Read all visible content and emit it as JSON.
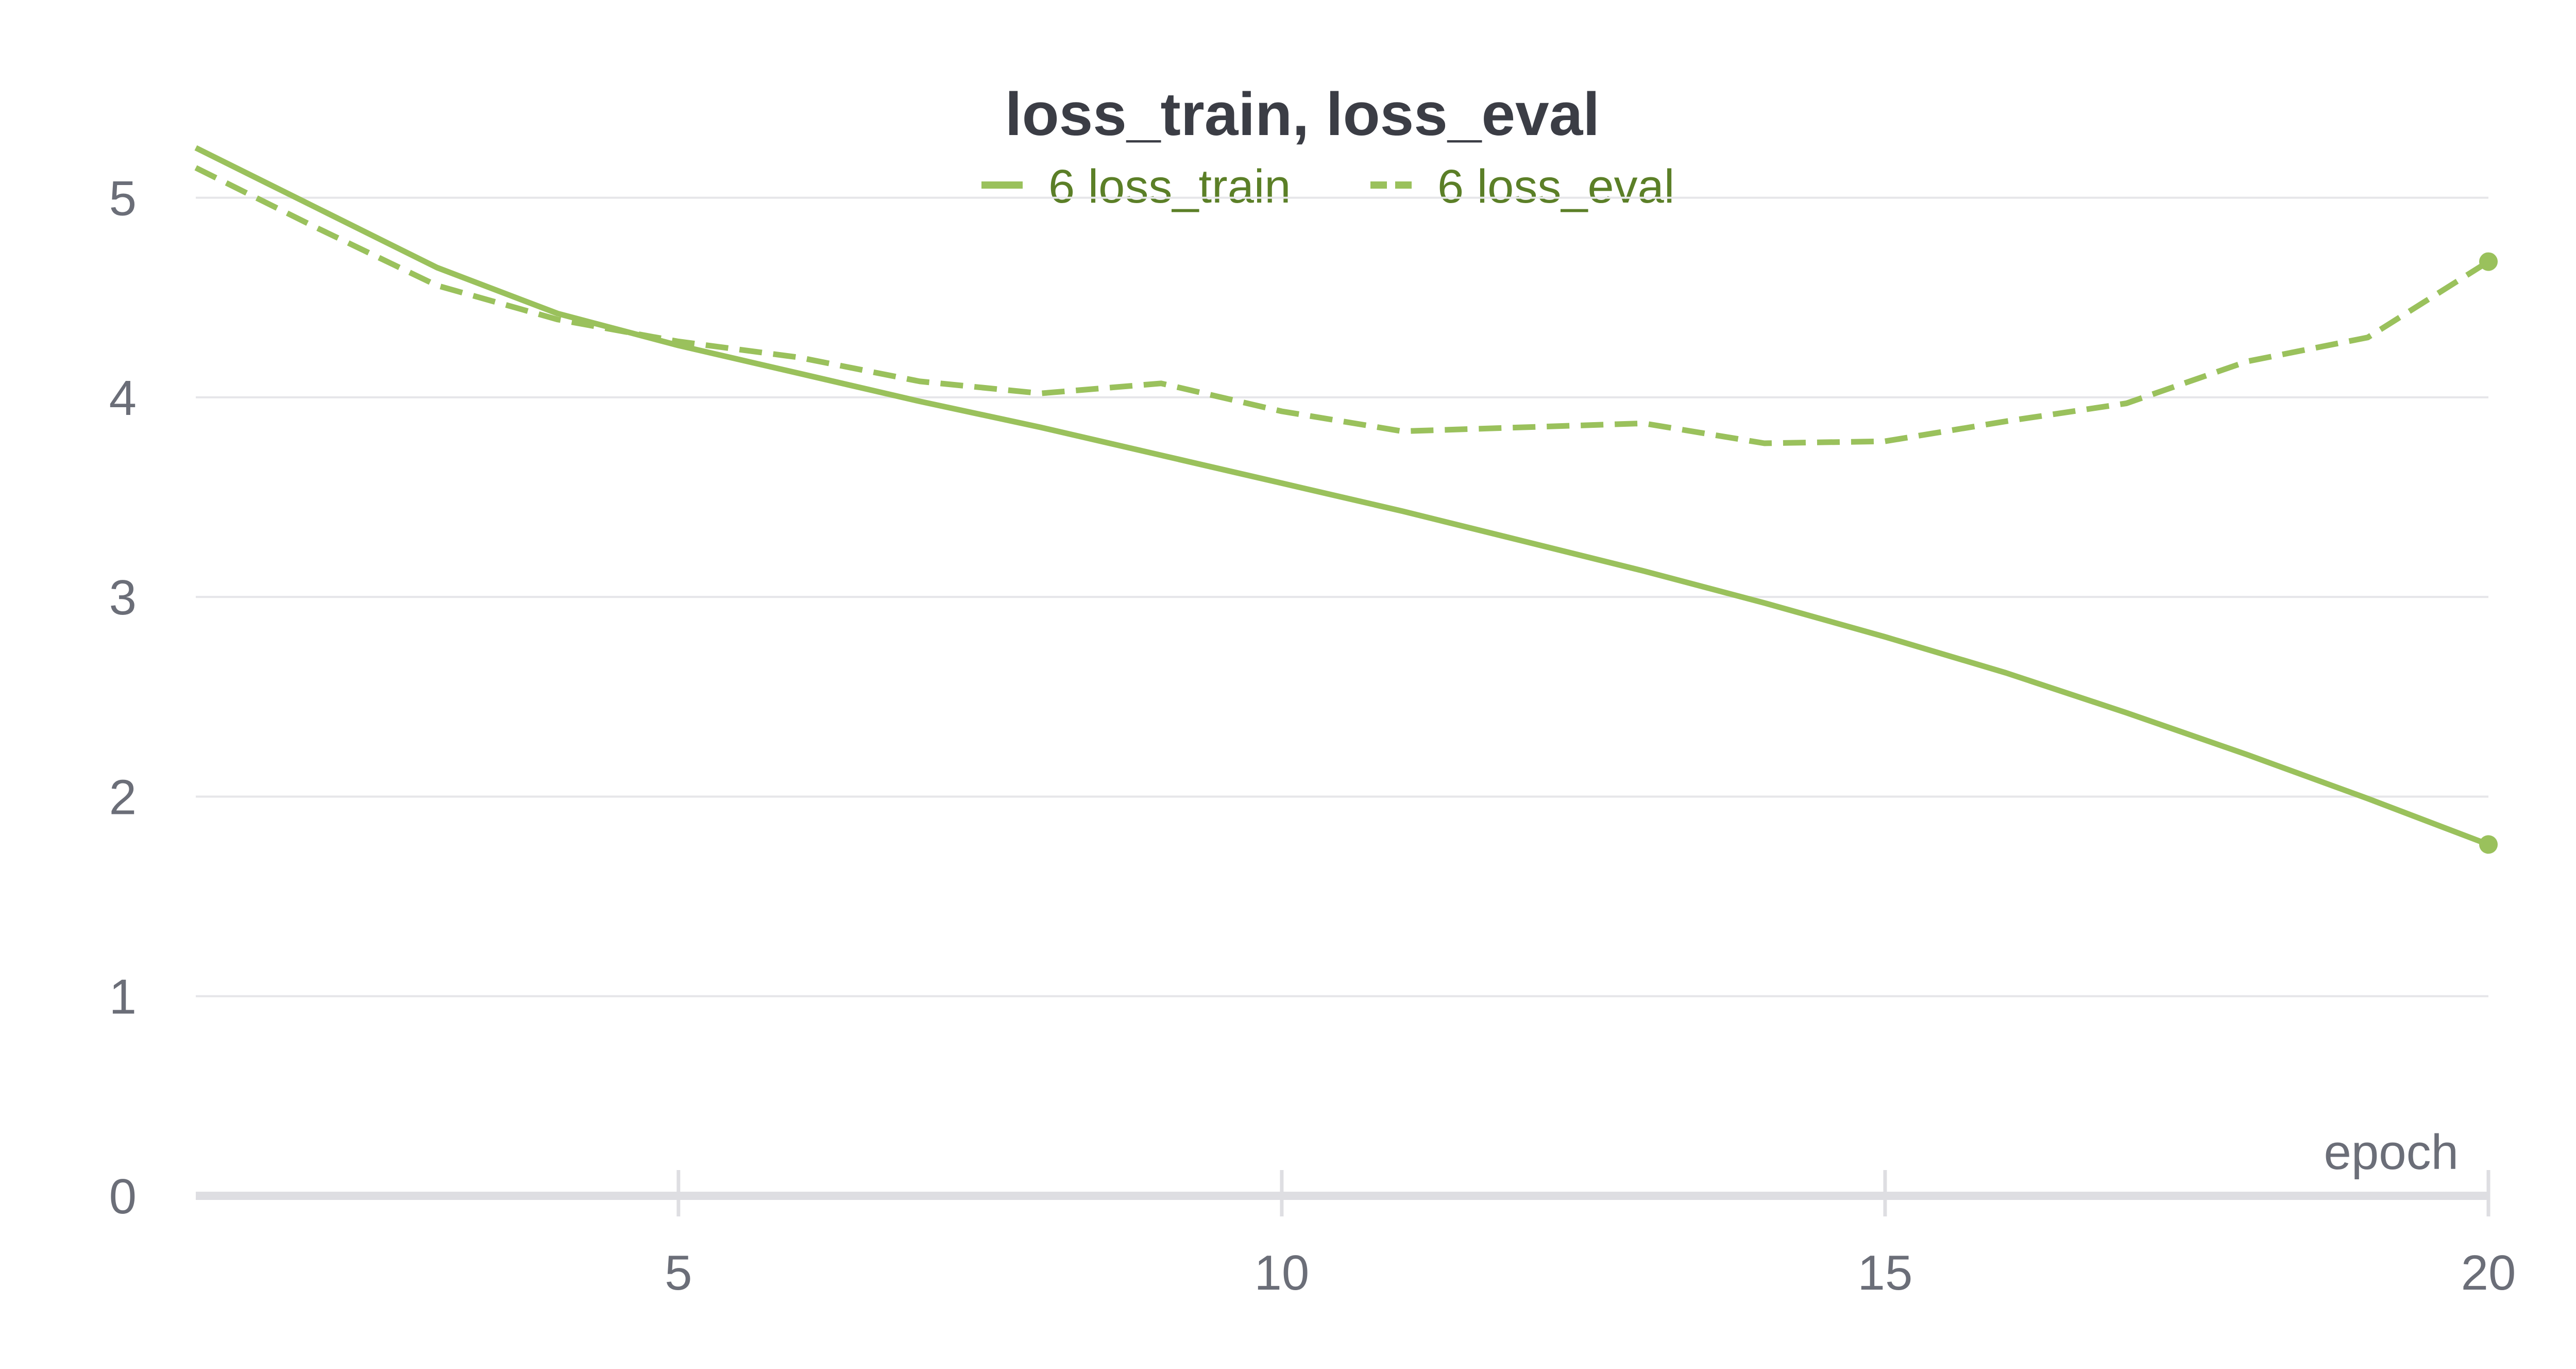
{
  "chart_data": {
    "type": "line",
    "title": "loss_train, loss_eval",
    "xlabel": "epoch",
    "ylabel": "",
    "xlim": [
      1,
      20
    ],
    "ylim": [
      0,
      5.5
    ],
    "x_ticks": [
      5,
      10,
      15,
      20
    ],
    "y_ticks": [
      0,
      1,
      2,
      3,
      4,
      5
    ],
    "grid": true,
    "legend_position": "top-center",
    "x": [
      1,
      2,
      3,
      4,
      5,
      6,
      7,
      8,
      9,
      10,
      11,
      12,
      13,
      14,
      15,
      16,
      17,
      18,
      19,
      20
    ],
    "series": [
      {
        "name": "6 loss_train",
        "color": "#9ac15c",
        "dash": "solid",
        "values": [
          5.25,
          4.95,
          4.65,
          4.42,
          4.26,
          4.12,
          3.98,
          3.85,
          3.71,
          3.57,
          3.43,
          3.28,
          3.13,
          2.97,
          2.8,
          2.62,
          2.42,
          2.21,
          1.99,
          1.76
        ]
      },
      {
        "name": "6 loss_eval",
        "color": "#9ac15c",
        "dash": "dashed",
        "values": [
          5.15,
          4.85,
          4.56,
          4.39,
          4.28,
          4.2,
          4.08,
          4.02,
          4.07,
          3.93,
          3.83,
          3.85,
          3.87,
          3.77,
          3.78,
          3.88,
          3.97,
          4.18,
          4.3,
          4.68
        ]
      }
    ]
  }
}
